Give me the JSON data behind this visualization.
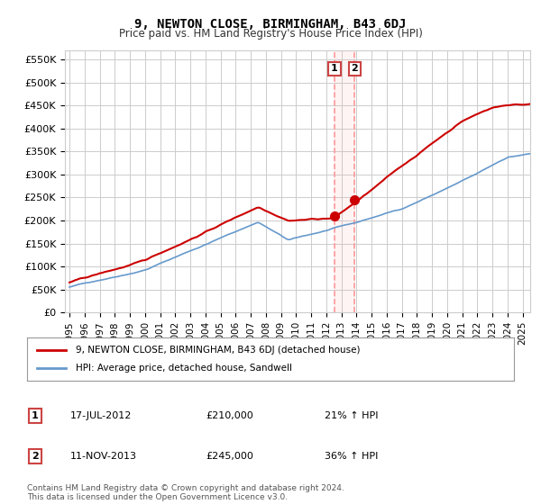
{
  "title": "9, NEWTON CLOSE, BIRMINGHAM, B43 6DJ",
  "subtitle": "Price paid vs. HM Land Registry's House Price Index (HPI)",
  "ylim": [
    0,
    570000
  ],
  "yticks": [
    0,
    50000,
    100000,
    150000,
    200000,
    250000,
    300000,
    350000,
    400000,
    450000,
    500000,
    550000
  ],
  "ytick_labels": [
    "£0",
    "£50K",
    "£100K",
    "£150K",
    "£200K",
    "£250K",
    "£300K",
    "£350K",
    "£400K",
    "£450K",
    "£500K",
    "£550K"
  ],
  "xlim_start": 1994.7,
  "xlim_end": 2025.5,
  "red_line_color": "#cc0000",
  "blue_line_color": "#6699cc",
  "marker_color": "#cc0000",
  "vline_color": "#ff9999",
  "grid_color": "#cccccc",
  "bg_color": "#ffffff",
  "legend_label_red": "9, NEWTON CLOSE, BIRMINGHAM, B43 6DJ (detached house)",
  "legend_label_blue": "HPI: Average price, detached house, Sandwell",
  "annotation1_label": "1",
  "annotation1_date": "17-JUL-2012",
  "annotation1_price": "£210,000",
  "annotation1_hpi": "21% ↑ HPI",
  "annotation2_label": "2",
  "annotation2_date": "11-NOV-2013",
  "annotation2_price": "£245,000",
  "annotation2_hpi": "36% ↑ HPI",
  "footer": "Contains HM Land Registry data © Crown copyright and database right 2024.\nThis data is licensed under the Open Government Licence v3.0.",
  "point1_x": 2012.54,
  "point1_y": 210000,
  "point2_x": 2013.87,
  "point2_y": 245000
}
